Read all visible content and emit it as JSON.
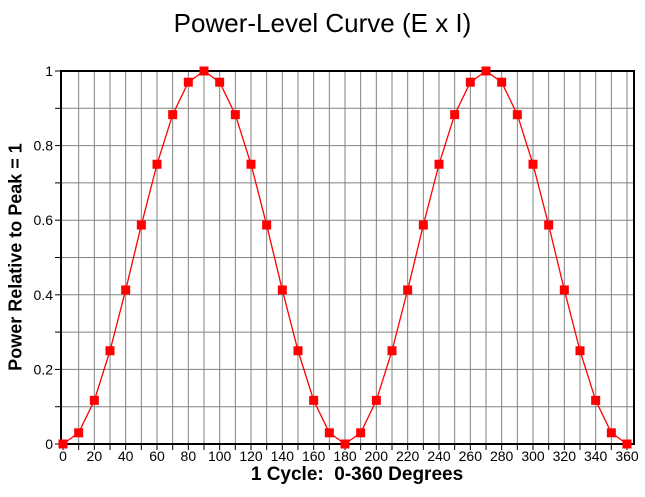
{
  "chart_data": {
    "type": "line",
    "title": "Power-Level Curve (E x I)",
    "xlabel": "1 Cycle:  0-360 Degrees",
    "ylabel": "Power Relative to Peak = 1",
    "x": [
      0,
      10,
      20,
      30,
      40,
      50,
      60,
      70,
      80,
      90,
      100,
      110,
      120,
      130,
      140,
      150,
      160,
      170,
      180,
      190,
      200,
      210,
      220,
      230,
      240,
      250,
      260,
      270,
      280,
      290,
      300,
      310,
      320,
      330,
      340,
      350,
      360
    ],
    "values": [
      0,
      0.03,
      0.117,
      0.25,
      0.413,
      0.587,
      0.75,
      0.883,
      0.97,
      1,
      0.97,
      0.883,
      0.75,
      0.587,
      0.413,
      0.25,
      0.117,
      0.03,
      0,
      0.03,
      0.117,
      0.25,
      0.413,
      0.587,
      0.75,
      0.883,
      0.97,
      1,
      0.97,
      0.883,
      0.75,
      0.587,
      0.413,
      0.25,
      0.117,
      0.03,
      0
    ],
    "xlim": [
      0,
      360
    ],
    "ylim": [
      0,
      1
    ],
    "x_tick_labels": [
      "0",
      "20",
      "40",
      "60",
      "80",
      "100",
      "120",
      "140",
      "160",
      "180",
      "200",
      "220",
      "240",
      "260",
      "280",
      "300",
      "320",
      "340",
      "360"
    ],
    "y_tick_labels": [
      "0",
      "0.2",
      "0.4",
      "0.6",
      "0.8",
      "1"
    ],
    "x_grid_step": 10,
    "y_grid_step": 0.1,
    "x_label_step": 20,
    "y_label_step": 0.2,
    "grid": "on",
    "legend": "none",
    "marker": "square",
    "colors": {
      "series": "#FF0000",
      "grid": "#808080",
      "axis": "#000000",
      "background": "#FFFFFF",
      "text": "#000000"
    }
  }
}
